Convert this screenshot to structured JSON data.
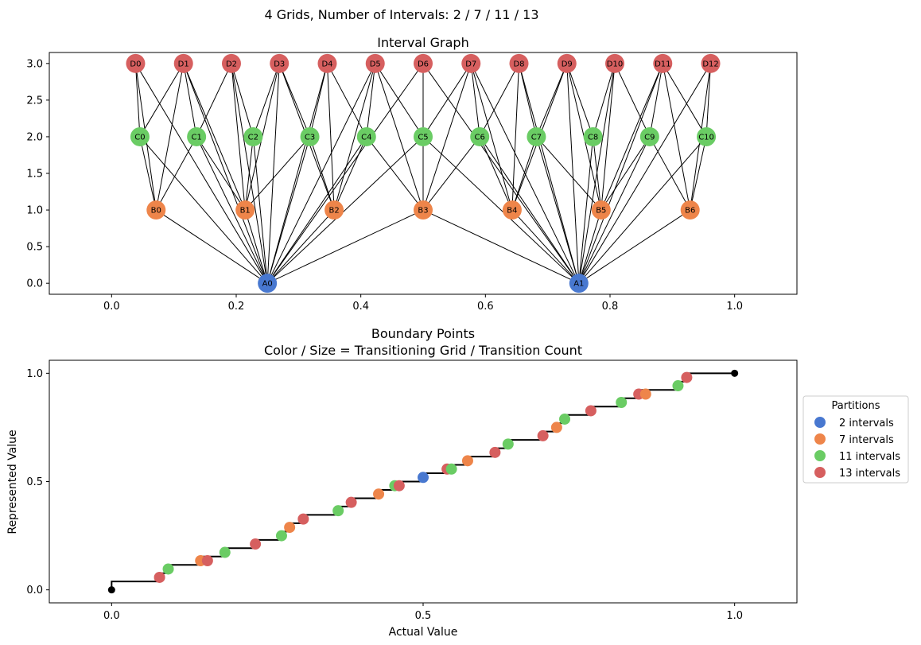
{
  "figure": {
    "suptitle": "4 Grids, Number of Intervals: 2 / 7 / 11 / 13"
  },
  "chart_data": [
    {
      "type": "network",
      "title": "Interval Graph",
      "xlabel": "",
      "ylabel": "",
      "xlim": [
        -0.1,
        1.1
      ],
      "ylim": [
        -0.15,
        3.15
      ],
      "xticks": [
        0.0,
        0.2,
        0.4,
        0.6,
        0.8,
        1.0
      ],
      "xtick_labels": [
        "0.0",
        "0.2",
        "0.4",
        "0.6",
        "0.8",
        "1.0"
      ],
      "yticks": [
        0.0,
        0.5,
        1.0,
        1.5,
        2.0,
        2.5,
        3.0
      ],
      "ytick_labels": [
        "0.0",
        "0.5",
        "1.0",
        "1.5",
        "2.0",
        "2.5",
        "3.0"
      ],
      "grids": [
        {
          "level": 0,
          "prefix": "A",
          "intervals": 2,
          "color": "#4878d0"
        },
        {
          "level": 1,
          "prefix": "B",
          "intervals": 7,
          "color": "#ee854a"
        },
        {
          "level": 2,
          "prefix": "C",
          "intervals": 11,
          "color": "#6acc64"
        },
        {
          "level": 3,
          "prefix": "D",
          "intervals": 13,
          "color": "#d65f5f"
        }
      ],
      "edge_rule": "edges connect nodes of different grids whose intervals overlap"
    },
    {
      "type": "scatter+step",
      "title": "Boundary Points",
      "subtitle": "Color / Size = Transitioning Grid / Transition Count",
      "xlabel": "Actual Value",
      "ylabel": "Represented Value",
      "xlim": [
        -0.1,
        1.1
      ],
      "ylim": [
        -0.06,
        1.06
      ],
      "xticks": [
        0.0,
        0.5,
        1.0
      ],
      "xtick_labels": [
        "0.0",
        "0.5",
        "1.0"
      ],
      "yticks": [
        0.0,
        0.5,
        1.0
      ],
      "ytick_labels": [
        "0.0",
        "0.5",
        "1.0"
      ],
      "legend": {
        "title": "Partitions",
        "placement": "center-right-outside"
      },
      "series": [
        {
          "name": "2 intervals",
          "color": "#4878d0",
          "intervals": 2
        },
        {
          "name": "7 intervals",
          "color": "#ee854a",
          "intervals": 7
        },
        {
          "name": "11 intervals",
          "color": "#6acc64",
          "intervals": 11
        },
        {
          "name": "13 intervals",
          "color": "#d65f5f",
          "intervals": 13
        }
      ],
      "endpoints": [
        {
          "x": 0,
          "y": 0
        },
        {
          "x": 1,
          "y": 1
        }
      ],
      "step_color": "#000000"
    }
  ]
}
